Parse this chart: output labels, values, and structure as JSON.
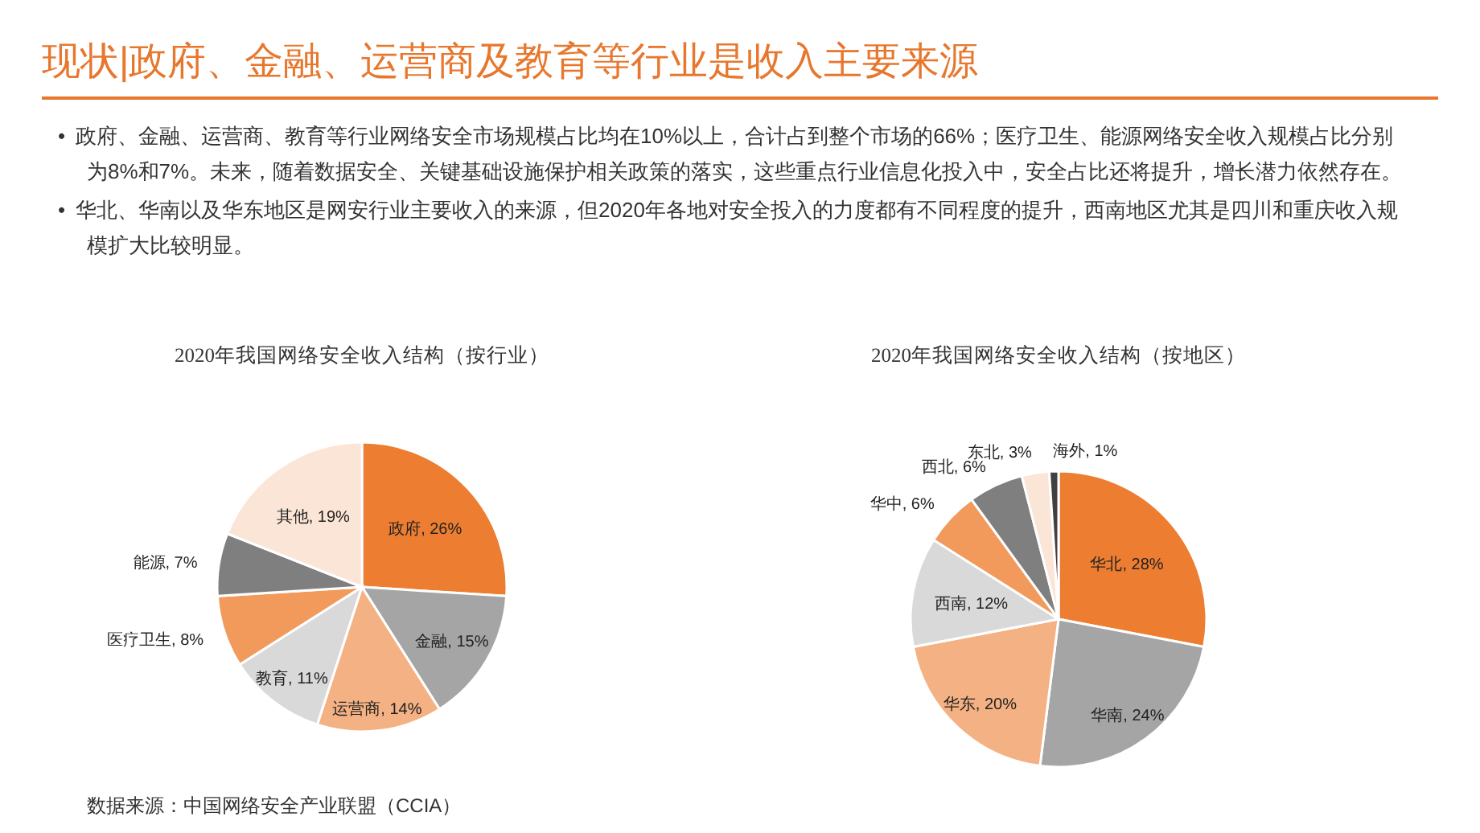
{
  "chart_data": [
    {
      "type": "other",
      "title": "现状|政府、金融、运营商及教育等行业是收入主要来源",
      "annotations": [
        "• 政府、金融、运营商、教育等行业网络安全市场规模占比均在10%以上，合计占到整个市场的66%；医疗卫生、能源网络安全收入规模占比分别为8%和7%。未来，随着数据安全、关键基础设施保护相关政策的落实，这些重点行业信息化投入中，安全占比还将提升，增长潜力依然存在。",
        "• 华北、华南以及华东地区是网安行业主要收入的来源，但2020年各地对安全投入的力度都有不同程度的提升，西南地区尤其是四川和重庆收入规模扩大比较明显。"
      ]
    },
    {
      "type": "pie",
      "title": "2020年我国网络安全收入结构（按行业）",
      "categories": [
        "政府",
        "金融",
        "运营商",
        "教育",
        "医疗卫生",
        "能源",
        "其他"
      ],
      "values": [
        26,
        15,
        14,
        11,
        8,
        7,
        19
      ],
      "value_labels": [
        "26%",
        "15%",
        "14%",
        "11%",
        "8%",
        "7%",
        "19%"
      ],
      "colors": [
        "#ed7d31",
        "#a5a5a5",
        "#f4b183",
        "#d9d9d9",
        "#f19a5c",
        "#7f7f7f",
        "#fbe5d6"
      ],
      "annotations": [
        "数据来源：中国网络安全产业联盟（CCIA）"
      ]
    },
    {
      "type": "pie",
      "title": "2020年我国网络安全收入结构（按地区）",
      "categories": [
        "华北",
        "华南",
        "华东",
        "西南",
        "华中",
        "西北",
        "东北",
        "海外"
      ],
      "values": [
        28,
        24,
        20,
        12,
        6,
        6,
        3,
        1
      ],
      "value_labels": [
        "28%",
        "24%",
        "20%",
        "12%",
        "6%",
        "6%",
        "3%",
        "1%"
      ],
      "colors": [
        "#ed7d31",
        "#a5a5a5",
        "#f4b183",
        "#d9d9d9",
        "#f19a5c",
        "#7f7f7f",
        "#fbe5d6",
        "#404040"
      ]
    }
  ]
}
